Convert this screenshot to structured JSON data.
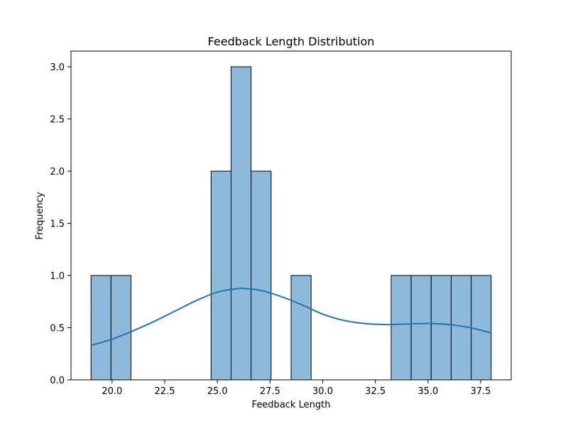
{
  "chart_data": {
    "type": "bar",
    "title": "Feedback Length Distribution",
    "xlabel": "Feedback Length",
    "ylabel": "Frequency",
    "xlim": [
      18.05,
      38.95
    ],
    "ylim": [
      0,
      3.15
    ],
    "x_ticks": [
      "20.0",
      "22.5",
      "25.0",
      "27.5",
      "30.0",
      "32.5",
      "35.0",
      "37.5"
    ],
    "y_ticks": [
      "0.0",
      "0.5",
      "1.0",
      "1.5",
      "2.0",
      "2.5",
      "3.0"
    ],
    "bins": [
      {
        "start": 19.0,
        "end": 19.95,
        "count": 1
      },
      {
        "start": 19.95,
        "end": 20.9,
        "count": 1
      },
      {
        "start": 20.9,
        "end": 21.85,
        "count": 0
      },
      {
        "start": 21.85,
        "end": 22.8,
        "count": 0
      },
      {
        "start": 22.8,
        "end": 23.75,
        "count": 0
      },
      {
        "start": 23.75,
        "end": 24.7,
        "count": 0
      },
      {
        "start": 24.7,
        "end": 25.65,
        "count": 2
      },
      {
        "start": 25.65,
        "end": 26.6,
        "count": 3
      },
      {
        "start": 26.6,
        "end": 27.55,
        "count": 2
      },
      {
        "start": 27.55,
        "end": 28.5,
        "count": 0
      },
      {
        "start": 28.5,
        "end": 29.45,
        "count": 1
      },
      {
        "start": 29.45,
        "end": 30.4,
        "count": 0
      },
      {
        "start": 30.4,
        "end": 31.35,
        "count": 0
      },
      {
        "start": 31.35,
        "end": 32.3,
        "count": 0
      },
      {
        "start": 32.3,
        "end": 33.25,
        "count": 0
      },
      {
        "start": 33.25,
        "end": 34.2,
        "count": 1
      },
      {
        "start": 34.2,
        "end": 35.15,
        "count": 1
      },
      {
        "start": 35.15,
        "end": 36.1,
        "count": 1
      },
      {
        "start": 36.1,
        "end": 37.05,
        "count": 1
      },
      {
        "start": 37.05,
        "end": 38.0,
        "count": 1
      }
    ],
    "kde": {
      "x": [
        19.0,
        20.0,
        21.0,
        22.0,
        23.0,
        24.0,
        25.0,
        26.0,
        26.3,
        27.0,
        28.0,
        29.0,
        30.0,
        31.0,
        32.0,
        33.0,
        34.0,
        35.0,
        36.0,
        37.0,
        38.0
      ],
      "y": [
        0.33,
        0.39,
        0.47,
        0.56,
        0.66,
        0.76,
        0.84,
        0.875,
        0.875,
        0.86,
        0.8,
        0.72,
        0.63,
        0.57,
        0.54,
        0.53,
        0.535,
        0.54,
        0.53,
        0.5,
        0.45
      ]
    },
    "colors": {
      "bar_fill": "#8db9da",
      "bar_edge": "#000000",
      "kde_line": "#1f77b4"
    },
    "grid": false,
    "legend": "none"
  }
}
